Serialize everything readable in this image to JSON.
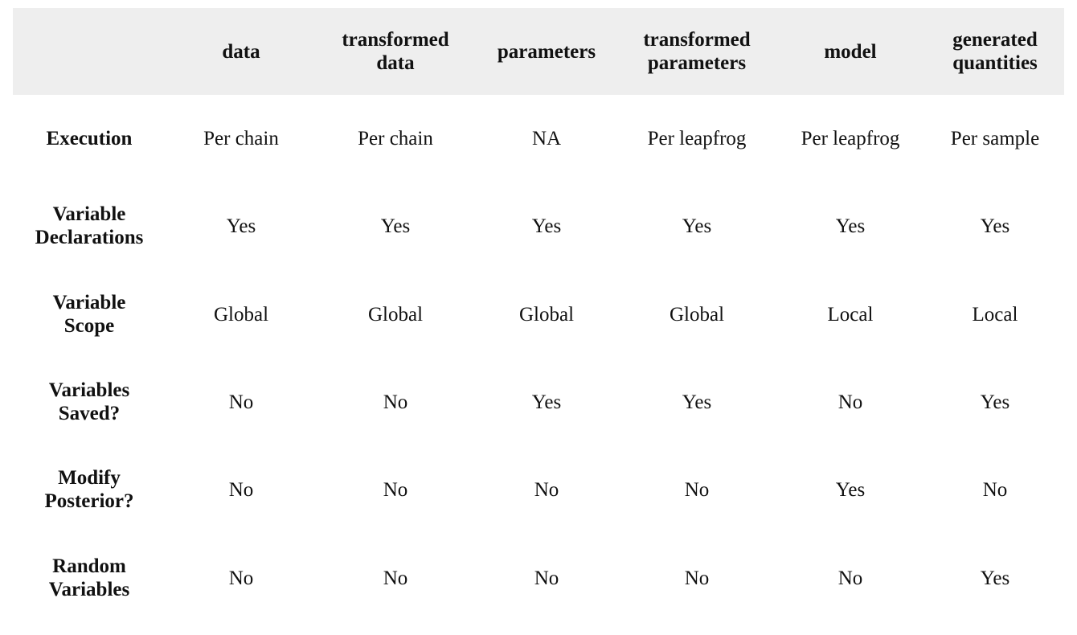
{
  "table": {
    "columns": [
      "data",
      "transformed\ndata",
      "parameters",
      "transformed\nparameters",
      "model",
      "generated\nquantities"
    ],
    "rows": [
      {
        "label": "Execution",
        "values": [
          "Per chain",
          "Per chain",
          "NA",
          "Per leapfrog",
          "Per leapfrog",
          "Per sample"
        ]
      },
      {
        "label": "Variable\nDeclarations",
        "values": [
          "Yes",
          "Yes",
          "Yes",
          "Yes",
          "Yes",
          "Yes"
        ]
      },
      {
        "label": "Variable\nScope",
        "values": [
          "Global",
          "Global",
          "Global",
          "Global",
          "Local",
          "Local"
        ]
      },
      {
        "label": "Variables\nSaved?",
        "values": [
          "No",
          "No",
          "Yes",
          "Yes",
          "No",
          "Yes"
        ]
      },
      {
        "label": "Modify\nPosterior?",
        "values": [
          "No",
          "No",
          "No",
          "No",
          "Yes",
          "No"
        ]
      },
      {
        "label": "Random\nVariables",
        "values": [
          "No",
          "No",
          "No",
          "No",
          "No",
          "Yes"
        ]
      }
    ],
    "header_bg": "#eeeeee"
  }
}
